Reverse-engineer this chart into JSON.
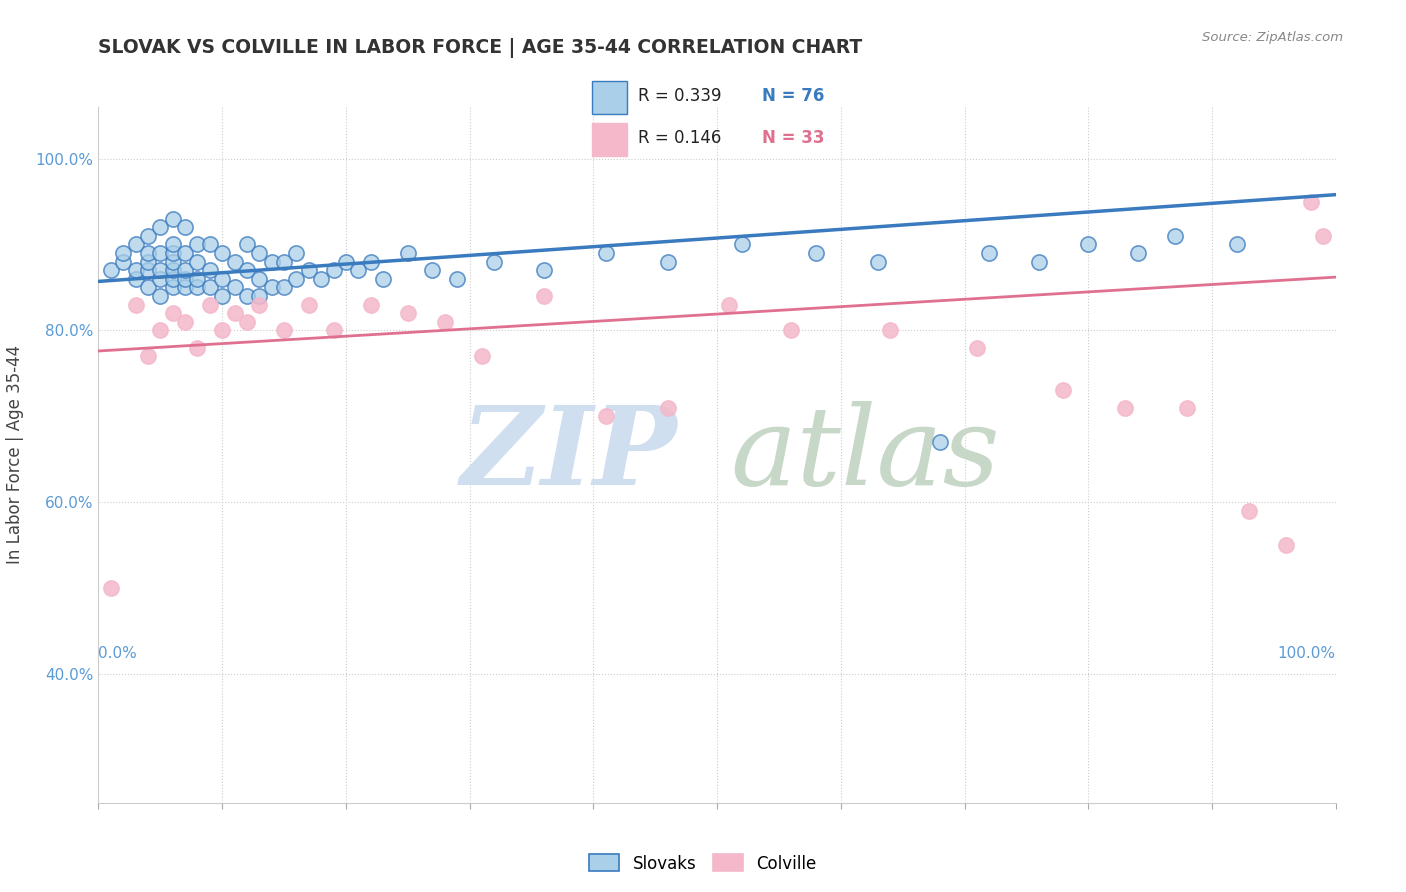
{
  "title": "SLOVAK VS COLVILLE IN LABOR FORCE | AGE 35-44 CORRELATION CHART",
  "source_text": "Source: ZipAtlas.com",
  "ylabel": "In Labor Force | Age 35-44",
  "xlim": [
    0.0,
    1.0
  ],
  "ylim": [
    0.25,
    1.06
  ],
  "y_ticks": [
    0.4,
    0.6,
    0.8,
    1.0
  ],
  "y_tick_labels": [
    "40.0%",
    "60.0%",
    "80.0%",
    "100.0%"
  ],
  "legend_labels": [
    "Slovaks",
    "Colville"
  ],
  "legend_r_blue": "0.339",
  "legend_n_blue": "76",
  "legend_r_pink": "0.146",
  "legend_n_pink": "33",
  "blue_scatter_color": "#aacfe8",
  "pink_scatter_color": "#f4b8ca",
  "trendline_blue_color": "#3a7abf",
  "trendline_pink_color": "#e07090",
  "watermark_zip_color": "#d0dff0",
  "watermark_atlas_color": "#c8d8c8",
  "slovaks_x": [
    0.01,
    0.02,
    0.02,
    0.03,
    0.03,
    0.03,
    0.04,
    0.04,
    0.04,
    0.04,
    0.04,
    0.05,
    0.05,
    0.05,
    0.05,
    0.05,
    0.06,
    0.06,
    0.06,
    0.06,
    0.06,
    0.06,
    0.06,
    0.07,
    0.07,
    0.07,
    0.07,
    0.07,
    0.08,
    0.08,
    0.08,
    0.08,
    0.09,
    0.09,
    0.09,
    0.1,
    0.1,
    0.1,
    0.11,
    0.11,
    0.12,
    0.12,
    0.12,
    0.13,
    0.13,
    0.13,
    0.14,
    0.14,
    0.15,
    0.15,
    0.16,
    0.16,
    0.17,
    0.18,
    0.19,
    0.2,
    0.21,
    0.22,
    0.23,
    0.25,
    0.27,
    0.29,
    0.32,
    0.36,
    0.41,
    0.46,
    0.52,
    0.58,
    0.63,
    0.68,
    0.72,
    0.76,
    0.8,
    0.84,
    0.87,
    0.92
  ],
  "slovaks_y": [
    0.87,
    0.88,
    0.89,
    0.86,
    0.87,
    0.9,
    0.85,
    0.87,
    0.88,
    0.89,
    0.91,
    0.84,
    0.86,
    0.87,
    0.89,
    0.92,
    0.85,
    0.86,
    0.87,
    0.88,
    0.89,
    0.9,
    0.93,
    0.85,
    0.86,
    0.87,
    0.89,
    0.92,
    0.85,
    0.86,
    0.88,
    0.9,
    0.85,
    0.87,
    0.9,
    0.84,
    0.86,
    0.89,
    0.85,
    0.88,
    0.84,
    0.87,
    0.9,
    0.84,
    0.86,
    0.89,
    0.85,
    0.88,
    0.85,
    0.88,
    0.86,
    0.89,
    0.87,
    0.86,
    0.87,
    0.88,
    0.87,
    0.88,
    0.86,
    0.89,
    0.87,
    0.86,
    0.88,
    0.87,
    0.89,
    0.88,
    0.9,
    0.89,
    0.88,
    0.67,
    0.89,
    0.88,
    0.9,
    0.89,
    0.91,
    0.9
  ],
  "colville_x": [
    0.01,
    0.03,
    0.04,
    0.05,
    0.06,
    0.07,
    0.08,
    0.09,
    0.1,
    0.11,
    0.12,
    0.13,
    0.15,
    0.17,
    0.19,
    0.22,
    0.25,
    0.28,
    0.31,
    0.36,
    0.41,
    0.46,
    0.51,
    0.56,
    0.64,
    0.71,
    0.78,
    0.83,
    0.88,
    0.93,
    0.96,
    0.98,
    0.99
  ],
  "colville_y": [
    0.5,
    0.83,
    0.77,
    0.8,
    0.82,
    0.81,
    0.78,
    0.83,
    0.8,
    0.82,
    0.81,
    0.83,
    0.8,
    0.83,
    0.8,
    0.83,
    0.82,
    0.81,
    0.77,
    0.84,
    0.7,
    0.71,
    0.83,
    0.8,
    0.8,
    0.78,
    0.73,
    0.71,
    0.71,
    0.59,
    0.55,
    0.95,
    0.91
  ],
  "trendline_blue_y_start": 0.857,
  "trendline_blue_y_end": 0.958,
  "trendline_pink_y_start": 0.776,
  "trendline_pink_y_end": 0.862
}
